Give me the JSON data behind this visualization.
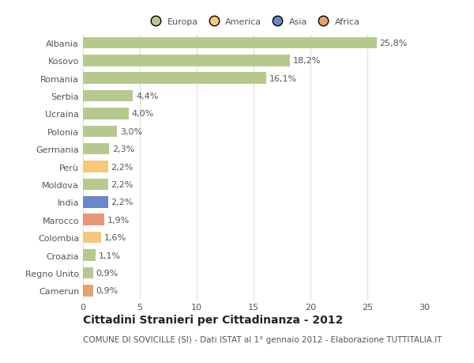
{
  "countries": [
    "Albania",
    "Kosovo",
    "Romania",
    "Serbia",
    "Ucraina",
    "Polonia",
    "Germania",
    "Perù",
    "Moldova",
    "India",
    "Marocco",
    "Colombia",
    "Croazia",
    "Regno Unito",
    "Camerun"
  ],
  "values": [
    25.8,
    18.2,
    16.1,
    4.4,
    4.0,
    3.0,
    2.3,
    2.2,
    2.2,
    2.2,
    1.9,
    1.6,
    1.1,
    0.9,
    0.9
  ],
  "labels": [
    "25,8%",
    "18,2%",
    "16,1%",
    "4,4%",
    "4,0%",
    "3,0%",
    "2,3%",
    "2,2%",
    "2,2%",
    "2,2%",
    "1,9%",
    "1,6%",
    "1,1%",
    "0,9%",
    "0,9%"
  ],
  "colors": [
    "#b5c98e",
    "#b5c98e",
    "#b5c98e",
    "#b5c98e",
    "#b5c98e",
    "#b5c98e",
    "#b5c98e",
    "#f5c97a",
    "#b5c98e",
    "#6a87c8",
    "#e8967a",
    "#f5c97a",
    "#b5c98e",
    "#b5c98e",
    "#e8a070"
  ],
  "legend_labels": [
    "Europa",
    "America",
    "Asia",
    "Africa"
  ],
  "legend_colors": [
    "#b5c98e",
    "#f5c97a",
    "#6a87c8",
    "#e8a070"
  ],
  "title": "Cittadini Stranieri per Cittadinanza - 2012",
  "subtitle": "COMUNE DI SOVICILLE (SI) - Dati ISTAT al 1° gennaio 2012 - Elaborazione TUTTITALIA.IT",
  "xlim": [
    0,
    30
  ],
  "xticks": [
    0,
    5,
    10,
    15,
    20,
    25,
    30
  ],
  "bg_color": "#ffffff",
  "grid_color": "#dddddd",
  "bar_height": 0.65,
  "label_fontsize": 8,
  "tick_fontsize": 8,
  "title_fontsize": 10,
  "subtitle_fontsize": 7.5,
  "text_color": "#555555",
  "title_color": "#222222"
}
